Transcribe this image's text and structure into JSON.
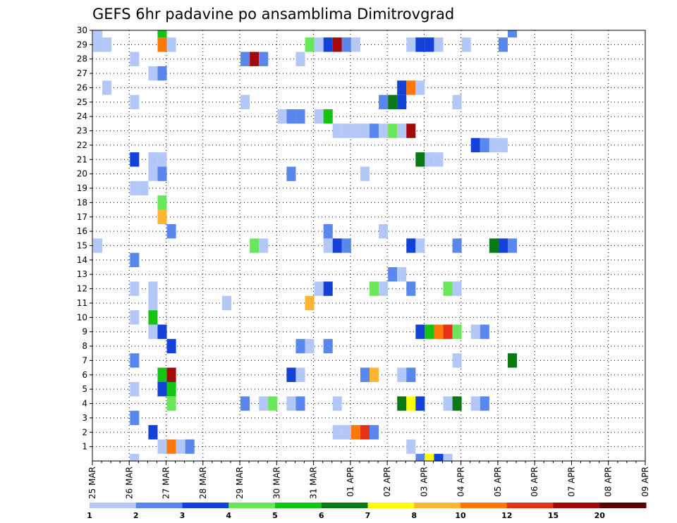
{
  "chart_data": {
    "type": "heatmap",
    "title": "GEFS 6hr padavine po ansamblima Dimitrovgrad",
    "xlabel": "",
    "ylabel": "",
    "x_tick_labels": [
      "25 MAR",
      "26 MAR",
      "27 MAR",
      "28 MAR",
      "29 MAR",
      "30 MAR",
      "31 MAR",
      "01 APR",
      "02 APR",
      "03 APR",
      "04 APR",
      "05 APR",
      "06 APR",
      "07 APR",
      "08 APR",
      "09 APR"
    ],
    "y_tick_labels": [
      "1",
      "2",
      "3",
      "4",
      "5",
      "6",
      "7",
      "8",
      "9",
      "10",
      "11",
      "12",
      "13",
      "14",
      "15",
      "16",
      "17",
      "18",
      "19",
      "20",
      "21",
      "22",
      "23",
      "24",
      "25",
      "26",
      "27",
      "28",
      "29",
      "30"
    ],
    "x_unit": "6-hour step from 25 MAR 00Z",
    "ylim": [
      0,
      30
    ],
    "grid": true,
    "colorbar": {
      "position": "bottom",
      "labels": [
        "1",
        "2",
        "3",
        "4",
        "5",
        "6",
        "7",
        "8",
        "10",
        "12",
        "15",
        "20"
      ],
      "colors": [
        "#b4c8f8",
        "#5a87ec",
        "#1441d8",
        "#6ae65a",
        "#14c314",
        "#0a7814",
        "#ffff00",
        "#ffb432",
        "#ff780a",
        "#e63214",
        "#a00a0a",
        "#5a0000"
      ]
    },
    "cells": [
      {
        "x": 0,
        "y": 30,
        "c": 1
      },
      {
        "x": 0,
        "y": 29,
        "c": 1
      },
      {
        "x": 1,
        "y": 29,
        "c": 1
      },
      {
        "x": 0,
        "y": 15,
        "c": 1
      },
      {
        "x": 1,
        "y": 26,
        "c": 1
      },
      {
        "x": 4,
        "y": 0,
        "c": 1
      },
      {
        "x": 4,
        "y": 3,
        "c": 2
      },
      {
        "x": 4,
        "y": 5,
        "c": 1
      },
      {
        "x": 4,
        "y": 7,
        "c": 2
      },
      {
        "x": 4,
        "y": 10,
        "c": 1
      },
      {
        "x": 4,
        "y": 12,
        "c": 1
      },
      {
        "x": 4,
        "y": 14,
        "c": 2
      },
      {
        "x": 4,
        "y": 19,
        "c": 1
      },
      {
        "x": 5,
        "y": 19,
        "c": 1
      },
      {
        "x": 4,
        "y": 21,
        "c": 3
      },
      {
        "x": 4,
        "y": 25,
        "c": 1
      },
      {
        "x": 4,
        "y": 28,
        "c": 1
      },
      {
        "x": 6,
        "y": 2,
        "c": 3
      },
      {
        "x": 6,
        "y": 9,
        "c": 1
      },
      {
        "x": 6,
        "y": 10,
        "c": 5
      },
      {
        "x": 6,
        "y": 11,
        "c": 1
      },
      {
        "x": 6,
        "y": 12,
        "c": 1
      },
      {
        "x": 6,
        "y": 20,
        "c": 1
      },
      {
        "x": 6,
        "y": 21,
        "c": 1
      },
      {
        "x": 6,
        "y": 27,
        "c": 1
      },
      {
        "x": 7,
        "y": 20,
        "c": 2
      },
      {
        "x": 7,
        "y": 21,
        "c": 1
      },
      {
        "x": 7,
        "y": 27,
        "c": 2
      },
      {
        "x": 7,
        "y": 30,
        "c": 5
      },
      {
        "x": 7,
        "y": 29,
        "c": 9
      },
      {
        "x": 8,
        "y": 29,
        "c": 1
      },
      {
        "x": 7,
        "y": 18,
        "c": 4
      },
      {
        "x": 7,
        "y": 17,
        "c": 8
      },
      {
        "x": 8,
        "y": 16,
        "c": 2
      },
      {
        "x": 7,
        "y": 9,
        "c": 3
      },
      {
        "x": 8,
        "y": 8,
        "c": 3
      },
      {
        "x": 7,
        "y": 6,
        "c": 5
      },
      {
        "x": 8,
        "y": 6,
        "c": 11
      },
      {
        "x": 7,
        "y": 5,
        "c": 3
      },
      {
        "x": 8,
        "y": 5,
        "c": 5
      },
      {
        "x": 8,
        "y": 4,
        "c": 4
      },
      {
        "x": 7,
        "y": 1,
        "c": 1
      },
      {
        "x": 8,
        "y": 1,
        "c": 9
      },
      {
        "x": 9,
        "y": 1,
        "c": 1
      },
      {
        "x": 10,
        "y": 1,
        "c": 2
      },
      {
        "x": 14,
        "y": 11,
        "c": 1
      },
      {
        "x": 16,
        "y": 28,
        "c": 2
      },
      {
        "x": 17,
        "y": 28,
        "c": 11
      },
      {
        "x": 18,
        "y": 28,
        "c": 2
      },
      {
        "x": 16,
        "y": 25,
        "c": 1
      },
      {
        "x": 16,
        "y": 4,
        "c": 2
      },
      {
        "x": 17,
        "y": 15,
        "c": 4
      },
      {
        "x": 18,
        "y": 15,
        "c": 1
      },
      {
        "x": 18,
        "y": 4,
        "c": 1
      },
      {
        "x": 19,
        "y": 4,
        "c": 4
      },
      {
        "x": 20,
        "y": 24,
        "c": 1
      },
      {
        "x": 21,
        "y": 24,
        "c": 2
      },
      {
        "x": 22,
        "y": 24,
        "c": 2
      },
      {
        "x": 21,
        "y": 20,
        "c": 2
      },
      {
        "x": 21,
        "y": 6,
        "c": 3
      },
      {
        "x": 22,
        "y": 6,
        "c": 1
      },
      {
        "x": 21,
        "y": 4,
        "c": 1
      },
      {
        "x": 22,
        "y": 4,
        "c": 2
      },
      {
        "x": 22,
        "y": 8,
        "c": 2
      },
      {
        "x": 23,
        "y": 8,
        "c": 1
      },
      {
        "x": 22,
        "y": 28,
        "c": 1
      },
      {
        "x": 23,
        "y": 11,
        "c": 8
      },
      {
        "x": 23,
        "y": 29,
        "c": 4
      },
      {
        "x": 24,
        "y": 29,
        "c": 1
      },
      {
        "x": 25,
        "y": 29,
        "c": 3
      },
      {
        "x": 26,
        "y": 29,
        "c": 11
      },
      {
        "x": 27,
        "y": 29,
        "c": 2
      },
      {
        "x": 28,
        "y": 29,
        "c": 1
      },
      {
        "x": 24,
        "y": 24,
        "c": 1
      },
      {
        "x": 25,
        "y": 24,
        "c": 5
      },
      {
        "x": 24,
        "y": 12,
        "c": 1
      },
      {
        "x": 25,
        "y": 12,
        "c": 3
      },
      {
        "x": 25,
        "y": 15,
        "c": 1
      },
      {
        "x": 26,
        "y": 15,
        "c": 3
      },
      {
        "x": 27,
        "y": 15,
        "c": 2
      },
      {
        "x": 25,
        "y": 16,
        "c": 2
      },
      {
        "x": 25,
        "y": 8,
        "c": 2
      },
      {
        "x": 26,
        "y": 23,
        "c": 1
      },
      {
        "x": 27,
        "y": 23,
        "c": 1
      },
      {
        "x": 28,
        "y": 23,
        "c": 1
      },
      {
        "x": 29,
        "y": 23,
        "c": 1
      },
      {
        "x": 30,
        "y": 23,
        "c": 2
      },
      {
        "x": 31,
        "y": 23,
        "c": 1
      },
      {
        "x": 32,
        "y": 23,
        "c": 4
      },
      {
        "x": 33,
        "y": 23,
        "c": 1
      },
      {
        "x": 34,
        "y": 23,
        "c": 11
      },
      {
        "x": 26,
        "y": 4,
        "c": 1
      },
      {
        "x": 26,
        "y": 2,
        "c": 1
      },
      {
        "x": 27,
        "y": 2,
        "c": 1
      },
      {
        "x": 28,
        "y": 2,
        "c": 9
      },
      {
        "x": 29,
        "y": 2,
        "c": 10
      },
      {
        "x": 30,
        "y": 2,
        "c": 2
      },
      {
        "x": 29,
        "y": 20,
        "c": 1
      },
      {
        "x": 29,
        "y": 6,
        "c": 2
      },
      {
        "x": 30,
        "y": 6,
        "c": 8
      },
      {
        "x": 30,
        "y": 12,
        "c": 4
      },
      {
        "x": 31,
        "y": 12,
        "c": 1
      },
      {
        "x": 31,
        "y": 16,
        "c": 1
      },
      {
        "x": 31,
        "y": 25,
        "c": 2
      },
      {
        "x": 32,
        "y": 25,
        "c": 6
      },
      {
        "x": 33,
        "y": 25,
        "c": 3
      },
      {
        "x": 32,
        "y": 13,
        "c": 2
      },
      {
        "x": 33,
        "y": 13,
        "c": 1
      },
      {
        "x": 33,
        "y": 26,
        "c": 3
      },
      {
        "x": 34,
        "y": 26,
        "c": 9
      },
      {
        "x": 35,
        "y": 26,
        "c": 1
      },
      {
        "x": 33,
        "y": 6,
        "c": 1
      },
      {
        "x": 34,
        "y": 6,
        "c": 2
      },
      {
        "x": 33,
        "y": 4,
        "c": 6
      },
      {
        "x": 34,
        "y": 4,
        "c": 7
      },
      {
        "x": 35,
        "y": 4,
        "c": 3
      },
      {
        "x": 34,
        "y": 15,
        "c": 3
      },
      {
        "x": 35,
        "y": 15,
        "c": 1
      },
      {
        "x": 34,
        "y": 12,
        "c": 2
      },
      {
        "x": 34,
        "y": 1,
        "c": 1
      },
      {
        "x": 34,
        "y": 29,
        "c": 1
      },
      {
        "x": 35,
        "y": 29,
        "c": 3
      },
      {
        "x": 36,
        "y": 29,
        "c": 3
      },
      {
        "x": 37,
        "y": 29,
        "c": 1
      },
      {
        "x": 35,
        "y": 21,
        "c": 6
      },
      {
        "x": 36,
        "y": 21,
        "c": 1
      },
      {
        "x": 37,
        "y": 21,
        "c": 1
      },
      {
        "x": 35,
        "y": 9,
        "c": 3
      },
      {
        "x": 36,
        "y": 9,
        "c": 5
      },
      {
        "x": 37,
        "y": 9,
        "c": 9
      },
      {
        "x": 38,
        "y": 9,
        "c": 10
      },
      {
        "x": 39,
        "y": 9,
        "c": 4
      },
      {
        "x": 35,
        "y": 0,
        "c": 2
      },
      {
        "x": 36,
        "y": 0,
        "c": 7
      },
      {
        "x": 37,
        "y": 0,
        "c": 3
      },
      {
        "x": 38,
        "y": 0,
        "c": 1
      },
      {
        "x": 38,
        "y": 12,
        "c": 4
      },
      {
        "x": 39,
        "y": 12,
        "c": 1
      },
      {
        "x": 38,
        "y": 4,
        "c": 1
      },
      {
        "x": 39,
        "y": 4,
        "c": 6
      },
      {
        "x": 39,
        "y": 7,
        "c": 1
      },
      {
        "x": 39,
        "y": 15,
        "c": 2
      },
      {
        "x": 39,
        "y": 25,
        "c": 1
      },
      {
        "x": 40,
        "y": 29,
        "c": 1
      },
      {
        "x": 41,
        "y": 9,
        "c": 1
      },
      {
        "x": 42,
        "y": 9,
        "c": 2
      },
      {
        "x": 41,
        "y": 22,
        "c": 3
      },
      {
        "x": 42,
        "y": 22,
        "c": 2
      },
      {
        "x": 43,
        "y": 22,
        "c": 1
      },
      {
        "x": 44,
        "y": 22,
        "c": 1
      },
      {
        "x": 41,
        "y": 4,
        "c": 1
      },
      {
        "x": 42,
        "y": 4,
        "c": 2
      },
      {
        "x": 43,
        "y": 15,
        "c": 6
      },
      {
        "x": 44,
        "y": 15,
        "c": 3
      },
      {
        "x": 45,
        "y": 15,
        "c": 2
      },
      {
        "x": 44,
        "y": 29,
        "c": 2
      },
      {
        "x": 45,
        "y": 30,
        "c": 2
      },
      {
        "x": 45,
        "y": 7,
        "c": 6
      }
    ]
  }
}
